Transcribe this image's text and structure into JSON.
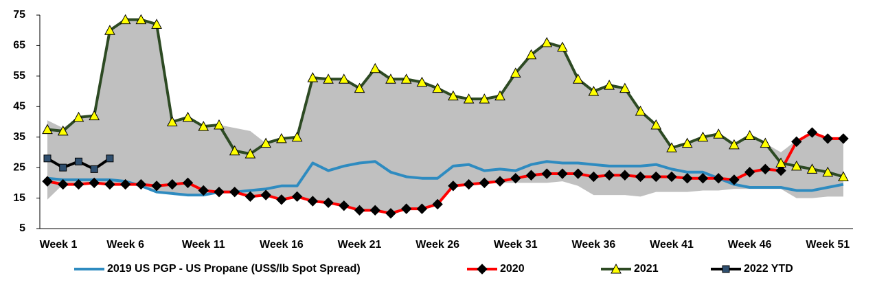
{
  "chart_data": {
    "type": "line",
    "categories": [
      "Week 1",
      null,
      null,
      null,
      null,
      "Week 6",
      null,
      null,
      null,
      null,
      "Week 11",
      null,
      null,
      null,
      null,
      "Week 16",
      null,
      null,
      null,
      null,
      "Week 21",
      null,
      null,
      null,
      null,
      "Week 26",
      null,
      null,
      null,
      null,
      "Week 31",
      null,
      null,
      null,
      null,
      "Week 36",
      null,
      null,
      null,
      null,
      "Week 41",
      null,
      null,
      null,
      null,
      "Week 46",
      null,
      null,
      null,
      null,
      "Week 51",
      null
    ],
    "ylim": [
      5,
      75
    ],
    "yticks": [
      5,
      15,
      25,
      35,
      45,
      55,
      65,
      75
    ],
    "band": {
      "color": "#c0c0c0",
      "upper": [
        40.5,
        38,
        41.5,
        42,
        70,
        73.5,
        73.5,
        72,
        40,
        41.5,
        39,
        39,
        38,
        37,
        33,
        34.5,
        35,
        54.5,
        54,
        54,
        51,
        57.5,
        54,
        54,
        53,
        51,
        48.5,
        47.5,
        47.5,
        48.5,
        56,
        62,
        66,
        64.5,
        54,
        50,
        52,
        51,
        43.5,
        39,
        31.5,
        33,
        35,
        36,
        32.5,
        35.5,
        33,
        30,
        34,
        36.5,
        34.5,
        34.5
      ],
      "lower": [
        14.5,
        19.5,
        19.5,
        20,
        19.5,
        19.5,
        19,
        17,
        16.5,
        16,
        16,
        17,
        17,
        15.5,
        16,
        14.5,
        15.5,
        14,
        13.5,
        12.5,
        11,
        11,
        10,
        11.5,
        11.5,
        13,
        19,
        19.5,
        20,
        20,
        20,
        20,
        20,
        20.5,
        19,
        16,
        16,
        16,
        15.5,
        17,
        17,
        17,
        17.5,
        17.5,
        18,
        18,
        18,
        18,
        15,
        15,
        15.5,
        15.5
      ]
    },
    "series": [
      {
        "name": "2019 US PGP - US Propane (US$/lb Spot Spread)",
        "color": "#2e8bc0",
        "marker": "none",
        "values": [
          21.5,
          21,
          21,
          21,
          21,
          20.5,
          19,
          17,
          16.5,
          16,
          16,
          17,
          17,
          17.5,
          18,
          19,
          19,
          26.5,
          24,
          25.5,
          26.5,
          27,
          23.5,
          22,
          21.5,
          21.5,
          25.5,
          26,
          24,
          24.5,
          24,
          26,
          27,
          26.5,
          26.5,
          26,
          25.5,
          25.5,
          25.5,
          26,
          24.5,
          23.5,
          23.5,
          21.5,
          19.5,
          18.5,
          18.5,
          18.5,
          17.5,
          17.5,
          18.5,
          19.5
        ]
      },
      {
        "name": "2020",
        "color": "#ff0000",
        "marker": "diamond",
        "marker_color": "#000000",
        "values": [
          20.5,
          19.5,
          19.5,
          20,
          19.5,
          19.5,
          19.5,
          19,
          19.5,
          20,
          17.5,
          17,
          17,
          15.5,
          16,
          14.5,
          15.5,
          14,
          13.5,
          12.5,
          11,
          11,
          10,
          11.5,
          11.5,
          13,
          19,
          19.5,
          20,
          20.5,
          21.5,
          22.5,
          23,
          23,
          23,
          22,
          22.5,
          22.5,
          22,
          22,
          22,
          21.5,
          21.5,
          21.5,
          21,
          23.5,
          24.5,
          24,
          33.5,
          36.5,
          34.5,
          34.5
        ]
      },
      {
        "name": "2021",
        "color": "#2d4a23",
        "marker": "triangle",
        "marker_color": "#ffff00",
        "values": [
          37.5,
          37,
          41.5,
          42,
          70,
          73.5,
          73.5,
          72,
          40,
          41.5,
          38.5,
          39,
          30.5,
          29.5,
          33,
          34.5,
          35,
          54.5,
          54,
          54,
          51,
          57.5,
          54,
          54,
          53,
          51,
          48.5,
          47.5,
          47.5,
          48.5,
          56,
          62,
          66,
          64.5,
          54,
          50,
          52,
          51,
          43.5,
          39,
          31.5,
          33,
          35,
          36,
          32.5,
          35.5,
          33,
          26.5,
          25.5,
          24.5,
          23.5,
          22
        ]
      },
      {
        "name": "2022 YTD",
        "color": "#000000",
        "marker": "square",
        "marker_color": "#2f4f6f",
        "values": [
          28,
          25,
          27,
          24.5,
          28,
          null,
          null,
          null,
          null,
          null,
          null,
          null,
          null,
          null,
          null,
          null,
          null,
          null,
          null,
          null,
          null,
          null,
          null,
          null,
          null,
          null,
          null,
          null,
          null,
          null,
          null,
          null,
          null,
          null,
          null,
          null,
          null,
          null,
          null,
          null,
          null,
          null,
          null,
          null,
          null,
          null,
          null,
          null,
          null,
          null,
          null,
          null
        ]
      }
    ]
  }
}
